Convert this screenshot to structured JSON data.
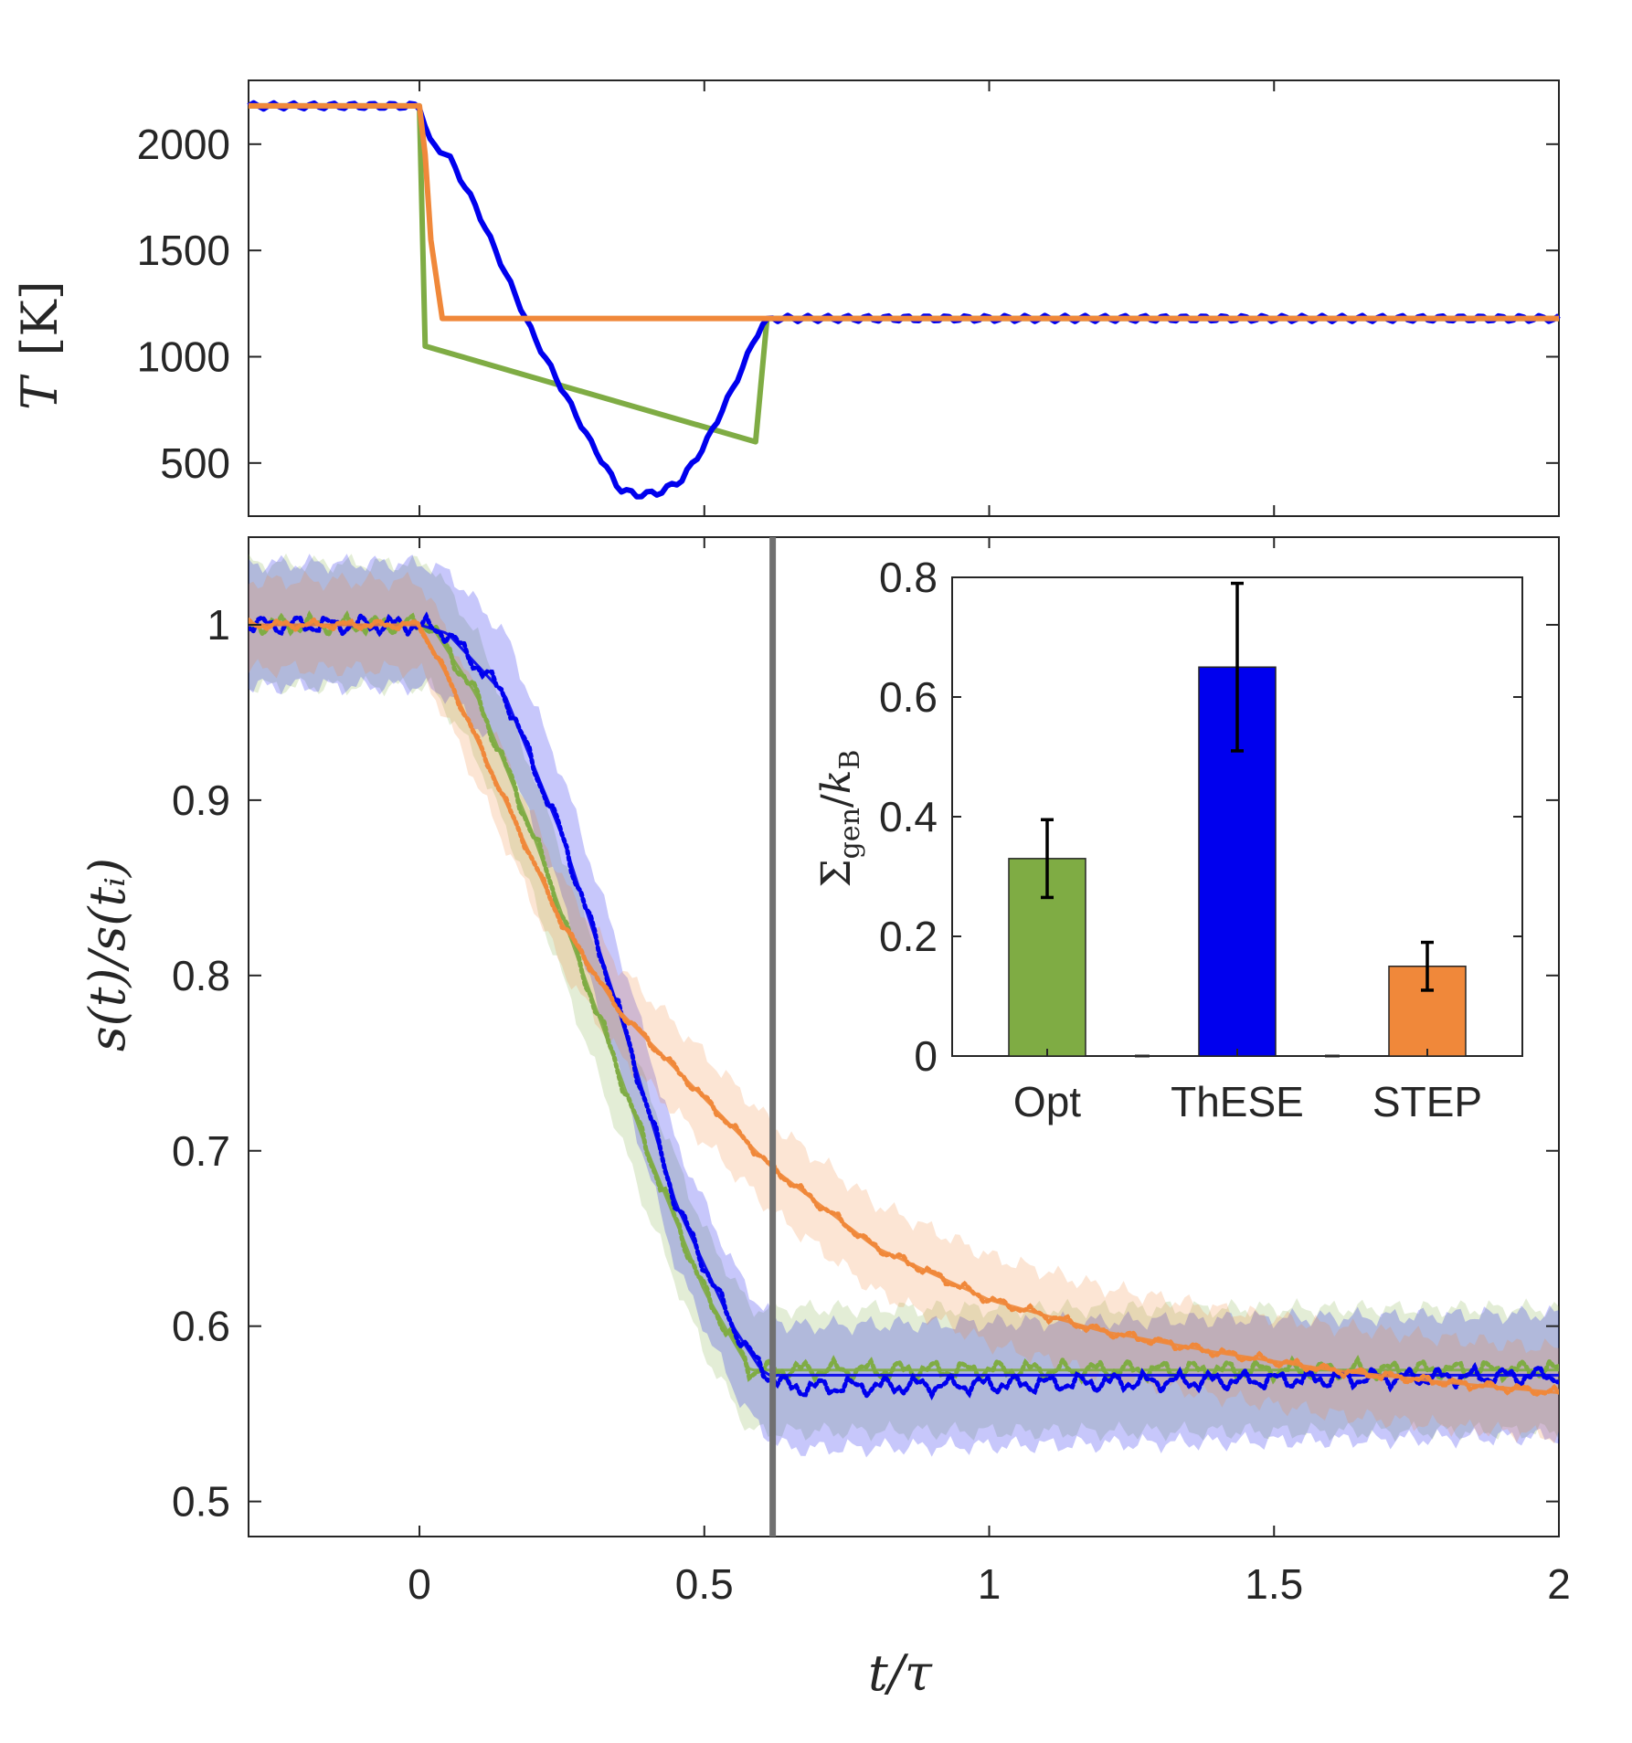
{
  "chart_data": [
    {
      "id": "temperature",
      "type": "line",
      "xlabel": "",
      "ylabel": "T [K]",
      "ylabel_parts": {
        "symbol": "T",
        "unit": "[K]"
      },
      "xlim": [
        -0.3,
        2.0
      ],
      "ylim": [
        250,
        2300
      ],
      "yticks": [
        500,
        1000,
        1500,
        2000
      ],
      "ytick_labels": [
        "500",
        "1000",
        "1500",
        "2000"
      ],
      "xticks": [
        0,
        0.5,
        1,
        1.5,
        2
      ],
      "series": [
        {
          "name": "Opt",
          "color": "#7fac44",
          "points": [
            [
              -0.3,
              2180
            ],
            [
              0.0,
              2180
            ],
            [
              0.01,
              1050
            ],
            [
              0.59,
              600
            ],
            [
              0.61,
              1180
            ],
            [
              2.0,
              1180
            ]
          ]
        },
        {
          "name": "ThESE",
          "color": "#0000ee",
          "points": [
            [
              -0.3,
              2180
            ],
            [
              0.0,
              2180
            ],
            [
              0.02,
              2000
            ],
            [
              0.05,
              1950
            ],
            [
              0.1,
              1700
            ],
            [
              0.15,
              1400
            ],
            [
              0.2,
              1100
            ],
            [
              0.25,
              850
            ],
            [
              0.3,
              600
            ],
            [
              0.35,
              380
            ],
            [
              0.38,
              350
            ],
            [
              0.42,
              360
            ],
            [
              0.46,
              420
            ],
            [
              0.5,
              580
            ],
            [
              0.55,
              850
            ],
            [
              0.6,
              1150
            ],
            [
              0.62,
              1180
            ],
            [
              2.0,
              1180
            ]
          ]
        },
        {
          "name": "STEP",
          "color": "#f0883a",
          "points": [
            [
              -0.3,
              2180
            ],
            [
              0.0,
              2180
            ],
            [
              0.01,
              1950
            ],
            [
              0.02,
              1550
            ],
            [
              0.04,
              1180
            ],
            [
              2.0,
              1180
            ]
          ]
        }
      ]
    },
    {
      "id": "entropy-ratio",
      "type": "line",
      "xlabel": "t/τ",
      "ylabel": "s(t)/s(tᵢ)",
      "xlim": [
        -0.3,
        2.0
      ],
      "ylim": [
        0.48,
        1.05
      ],
      "xticks": [
        0,
        0.5,
        1,
        1.5,
        2
      ],
      "xtick_labels": [
        "0",
        "0.5",
        "1",
        "1.5",
        "2"
      ],
      "yticks": [
        0.5,
        0.6,
        0.7,
        0.8,
        0.9,
        1.0
      ],
      "ytick_labels": [
        "0.5",
        "0.6",
        "0.7",
        "0.8",
        "0.9",
        "1"
      ],
      "vertical_line_x": 0.62,
      "series": [
        {
          "name": "Opt",
          "color": "#7fac44",
          "band": 0.035,
          "points": [
            [
              -0.3,
              1.0
            ],
            [
              0.02,
              1.0
            ],
            [
              0.1,
              0.96
            ],
            [
              0.2,
              0.88
            ],
            [
              0.3,
              0.79
            ],
            [
              0.4,
              0.7
            ],
            [
              0.5,
              0.62
            ],
            [
              0.58,
              0.575
            ],
            [
              0.62,
              0.575
            ],
            [
              2.0,
              0.575
            ]
          ]
        },
        {
          "name": "ThESE",
          "color": "#0000ee",
          "band": 0.035,
          "points": [
            [
              -0.3,
              1.0
            ],
            [
              0.0,
              1.0
            ],
            [
              0.05,
              0.995
            ],
            [
              0.15,
              0.96
            ],
            [
              0.25,
              0.88
            ],
            [
              0.35,
              0.78
            ],
            [
              0.45,
              0.67
            ],
            [
              0.55,
              0.6
            ],
            [
              0.6,
              0.575
            ],
            [
              0.65,
              0.565
            ],
            [
              2.0,
              0.572
            ]
          ]
        },
        {
          "name": "STEP",
          "color": "#f0883a",
          "band": 0.025,
          "points": [
            [
              -0.3,
              1.0
            ],
            [
              0.0,
              1.0
            ],
            [
              0.05,
              0.97
            ],
            [
              0.15,
              0.9
            ],
            [
              0.25,
              0.83
            ],
            [
              0.35,
              0.78
            ],
            [
              0.5,
              0.73
            ],
            [
              0.62,
              0.69
            ],
            [
              0.8,
              0.645
            ],
            [
              1.0,
              0.615
            ],
            [
              1.2,
              0.597
            ],
            [
              1.4,
              0.585
            ],
            [
              1.6,
              0.575
            ],
            [
              1.8,
              0.568
            ],
            [
              2.0,
              0.562
            ]
          ]
        }
      ]
    },
    {
      "id": "entropy-generation-inset",
      "type": "bar",
      "ylabel": "Σgen/kB",
      "ylabel_parts": {
        "sigma": "Σ",
        "sub": "gen",
        "sep": "/",
        "k": "k",
        "ksub": "B"
      },
      "categories": [
        "Opt",
        "ThESE",
        "STEP"
      ],
      "values": [
        0.33,
        0.65,
        0.15
      ],
      "errors": [
        [
          0.265,
          0.395
        ],
        [
          0.51,
          0.79
        ],
        [
          0.11,
          0.19
        ]
      ],
      "colors": [
        "#7fac44",
        "#0000ee",
        "#f0883a"
      ],
      "ylim": [
        0,
        0.8
      ],
      "yticks": [
        0,
        0.2,
        0.4,
        0.6,
        0.8
      ],
      "ytick_labels": [
        "0",
        "0.2",
        "0.4",
        "0.6",
        "0.8"
      ]
    }
  ]
}
